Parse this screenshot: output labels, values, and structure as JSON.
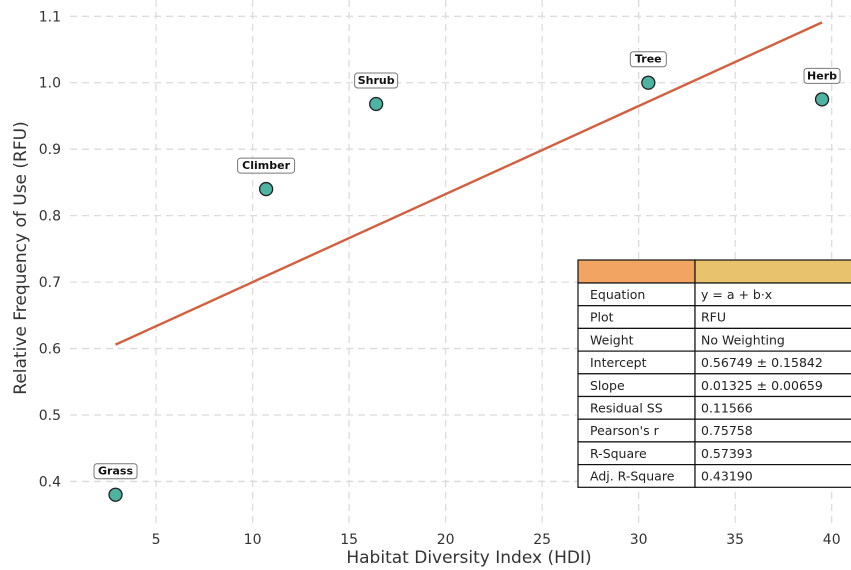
{
  "chart_data": {
    "type": "scatter",
    "xlabel": "Habitat Diversity Index (HDI)",
    "ylabel": "Relative Frequency of Use (RFU)",
    "xlim": [
      0.8,
      41.0
    ],
    "ylim": [
      0.345,
      1.12
    ],
    "x_ticks": [
      5,
      10,
      15,
      20,
      25,
      30,
      35,
      40
    ],
    "y_ticks": [
      0.4,
      0.5,
      0.6,
      0.7,
      0.8,
      0.9,
      1.0,
      1.1
    ],
    "grid": true,
    "point_color": "#4fb3a2",
    "line_color": "#d2603f",
    "points": [
      {
        "label": "Grass",
        "x": 2.9,
        "y": 0.38
      },
      {
        "label": "Climber",
        "x": 10.7,
        "y": 0.84
      },
      {
        "label": "Shrub",
        "x": 16.4,
        "y": 0.968
      },
      {
        "label": "Tree",
        "x": 30.5,
        "y": 1.0
      },
      {
        "label": "Herb",
        "x": 39.5,
        "y": 0.975
      }
    ],
    "fit_line": {
      "x": [
        2.9,
        39.5
      ],
      "y": [
        0.6059,
        1.0908
      ]
    },
    "fit_table": {
      "header_colors": [
        "#f2a462",
        "#e8c26c"
      ],
      "rows": [
        [
          "Equation",
          "y = a + b·x"
        ],
        [
          "Plot",
          "RFU"
        ],
        [
          "Weight",
          "No Weighting"
        ],
        [
          "Intercept",
          "0.56749 ± 0.15842"
        ],
        [
          "Slope",
          "0.01325 ± 0.00659"
        ],
        [
          "Residual SS",
          "0.11566"
        ],
        [
          "Pearson's r",
          "0.75758"
        ],
        [
          "R-Square",
          "0.57393"
        ],
        [
          "Adj. R-Square",
          "0.43190"
        ]
      ]
    }
  }
}
